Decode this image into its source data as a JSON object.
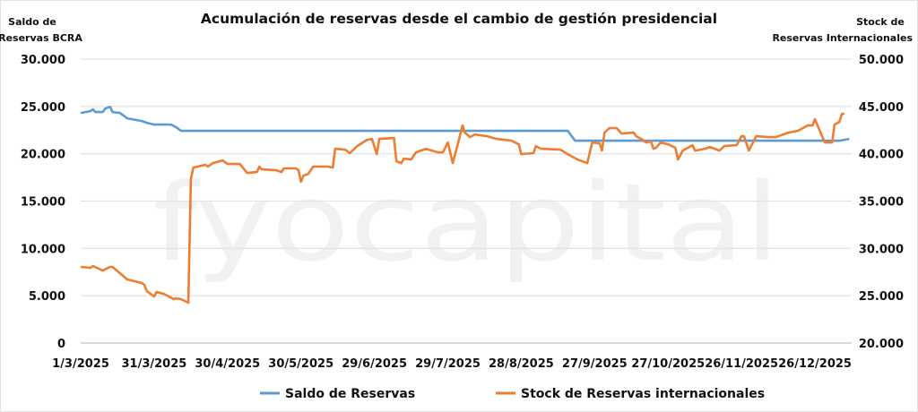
{
  "chart_data": {
    "type": "line",
    "title": "Acumulación de reservas desde el cambio de gestión presidencial",
    "ylabel_left": [
      "Saldo de",
      "Reservas BCRA"
    ],
    "ylabel_right": [
      "Stock de",
      "Reservas Internacionales"
    ],
    "x_unit": "days since 1/3/2025",
    "xlim": [
      0,
      315
    ],
    "x_ticks": [
      0,
      30,
      60,
      90,
      120,
      150,
      180,
      210,
      240,
      270,
      300
    ],
    "x_tick_labels": [
      "1/3/2025",
      "31/3/2025",
      "30/4/2025",
      "30/5/2025",
      "29/6/2025",
      "29/7/2025",
      "28/8/2025",
      "27/9/2025",
      "27/10/2025",
      "26/11/2025",
      "26/12/2025"
    ],
    "ylim_left": [
      0,
      30000
    ],
    "y_ticks_left": [
      "0",
      "5.000",
      "10.000",
      "15.000",
      "20.000",
      "25.000",
      "30.000"
    ],
    "ylim_right": [
      20000,
      50000
    ],
    "y_ticks_right": [
      "20.000",
      "25.000",
      "30.000",
      "35.000",
      "40.000",
      "45.000",
      "50.000"
    ],
    "grid": true,
    "legend_position": "bottom",
    "watermark": "fyocapital",
    "series": [
      {
        "name": "Saldo de Reservas",
        "axis": "left",
        "color": "#5b9bd5",
        "points": [
          [
            0,
            24310
          ],
          [
            4,
            24500
          ],
          [
            5,
            24690
          ],
          [
            6,
            24410
          ],
          [
            9,
            24410
          ],
          [
            10,
            24770
          ],
          [
            12,
            24970
          ],
          [
            13,
            24410
          ],
          [
            16,
            24310
          ],
          [
            19,
            23740
          ],
          [
            25,
            23460
          ],
          [
            27,
            23270
          ],
          [
            30,
            23080
          ],
          [
            37,
            23080
          ],
          [
            39,
            22800
          ],
          [
            41,
            22420
          ],
          [
            199,
            22420
          ],
          [
            202,
            21380
          ],
          [
            310,
            21380
          ],
          [
            314,
            21570
          ]
        ]
      },
      {
        "name": "Stock de Reservas internacionales",
        "axis": "right",
        "color": "#ed7d31",
        "points": [
          [
            0,
            28040
          ],
          [
            4,
            27950
          ],
          [
            5,
            28140
          ],
          [
            9,
            27660
          ],
          [
            12,
            28040
          ],
          [
            13,
            28040
          ],
          [
            16,
            27380
          ],
          [
            19,
            26720
          ],
          [
            25,
            26340
          ],
          [
            26,
            26150
          ],
          [
            27,
            25490
          ],
          [
            30,
            24920
          ],
          [
            31,
            25390
          ],
          [
            34,
            25200
          ],
          [
            38,
            24640
          ],
          [
            39,
            24730
          ],
          [
            41,
            24640
          ],
          [
            44,
            24260
          ],
          [
            45,
            37310
          ],
          [
            46,
            38540
          ],
          [
            51,
            38830
          ],
          [
            52,
            38640
          ],
          [
            54,
            39010
          ],
          [
            58,
            39300
          ],
          [
            60,
            38920
          ],
          [
            65,
            38920
          ],
          [
            68,
            37970
          ],
          [
            72,
            38070
          ],
          [
            73,
            38640
          ],
          [
            74,
            38350
          ],
          [
            80,
            38260
          ],
          [
            82,
            38070
          ],
          [
            83,
            38450
          ],
          [
            88,
            38450
          ],
          [
            89,
            38260
          ],
          [
            90,
            37030
          ],
          [
            91,
            37690
          ],
          [
            93,
            37880
          ],
          [
            95,
            38640
          ],
          [
            101,
            38640
          ],
          [
            103,
            38540
          ],
          [
            104,
            40530
          ],
          [
            108,
            40430
          ],
          [
            110,
            40060
          ],
          [
            113,
            40810
          ],
          [
            117,
            41470
          ],
          [
            119,
            41570
          ],
          [
            121,
            39960
          ],
          [
            122,
            41570
          ],
          [
            128,
            41660
          ],
          [
            129,
            39200
          ],
          [
            131,
            39010
          ],
          [
            132,
            39490
          ],
          [
            135,
            39390
          ],
          [
            137,
            40150
          ],
          [
            139,
            40340
          ],
          [
            141,
            40530
          ],
          [
            146,
            40150
          ],
          [
            148,
            40150
          ],
          [
            150,
            41190
          ],
          [
            152,
            39010
          ],
          [
            154,
            40910
          ],
          [
            156,
            42990
          ],
          [
            157,
            42230
          ],
          [
            159,
            41760
          ],
          [
            161,
            42040
          ],
          [
            166,
            41850
          ],
          [
            170,
            41570
          ],
          [
            176,
            41380
          ],
          [
            179,
            41000
          ],
          [
            180,
            39960
          ],
          [
            185,
            40060
          ],
          [
            186,
            40810
          ],
          [
            188,
            40530
          ],
          [
            196,
            40430
          ],
          [
            199,
            39960
          ],
          [
            203,
            39390
          ],
          [
            206,
            39110
          ],
          [
            207,
            39010
          ],
          [
            209,
            41190
          ],
          [
            212,
            41100
          ],
          [
            213,
            40340
          ],
          [
            214,
            42230
          ],
          [
            216,
            42700
          ],
          [
            219,
            42700
          ],
          [
            221,
            42140
          ],
          [
            226,
            42230
          ],
          [
            227,
            41850
          ],
          [
            229,
            41570
          ],
          [
            231,
            41190
          ],
          [
            233,
            41290
          ],
          [
            234,
            40530
          ],
          [
            235,
            40620
          ],
          [
            237,
            41190
          ],
          [
            240,
            41000
          ],
          [
            243,
            40620
          ],
          [
            244,
            39390
          ],
          [
            246,
            40340
          ],
          [
            250,
            40910
          ],
          [
            251,
            40340
          ],
          [
            255,
            40530
          ],
          [
            257,
            40720
          ],
          [
            261,
            40340
          ],
          [
            263,
            40810
          ],
          [
            268,
            40910
          ],
          [
            270,
            41850
          ],
          [
            271,
            41850
          ],
          [
            273,
            40340
          ],
          [
            276,
            41850
          ],
          [
            281,
            41760
          ],
          [
            284,
            41760
          ],
          [
            289,
            42230
          ],
          [
            293,
            42420
          ],
          [
            297,
            42990
          ],
          [
            299,
            42990
          ],
          [
            300,
            43650
          ],
          [
            304,
            41190
          ],
          [
            307,
            41190
          ],
          [
            308,
            43080
          ],
          [
            310,
            43370
          ],
          [
            311,
            44220
          ],
          [
            312,
            44220
          ]
        ]
      }
    ]
  }
}
